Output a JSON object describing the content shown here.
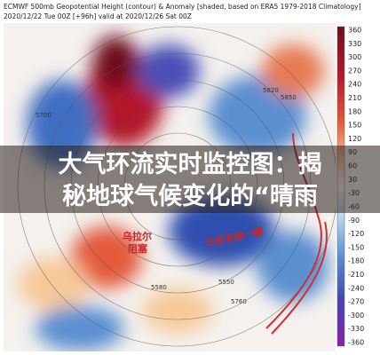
{
  "header": {
    "title": "ECMWF 500mb Geopotential Height (contour) & Anomaly [shaded, based on ERA5 1979-2018 Climatology]",
    "subtitle": "2020/12/22 Tue 00Z [+96h] valid at 2020/12/26 Sat 00Z"
  },
  "colorbar": {
    "ticks": [
      360,
      330,
      300,
      270,
      240,
      210,
      180,
      150,
      120,
      90,
      60,
      30,
      -30,
      -60,
      -90,
      -120,
      -150,
      -180,
      -210,
      -240,
      -270,
      -300,
      -330,
      -360
    ]
  },
  "banner": {
    "lines": [
      "大气环流实时监控图：揭",
      "秘地球气候变化的“晴雨"
    ]
  },
  "map": {
    "labels": [
      "乌拉尔",
      "阻塞",
      "北极涡旋一槽",
      "5820",
      "5850",
      "5700",
      "5580",
      "5550",
      "5760"
    ]
  }
}
